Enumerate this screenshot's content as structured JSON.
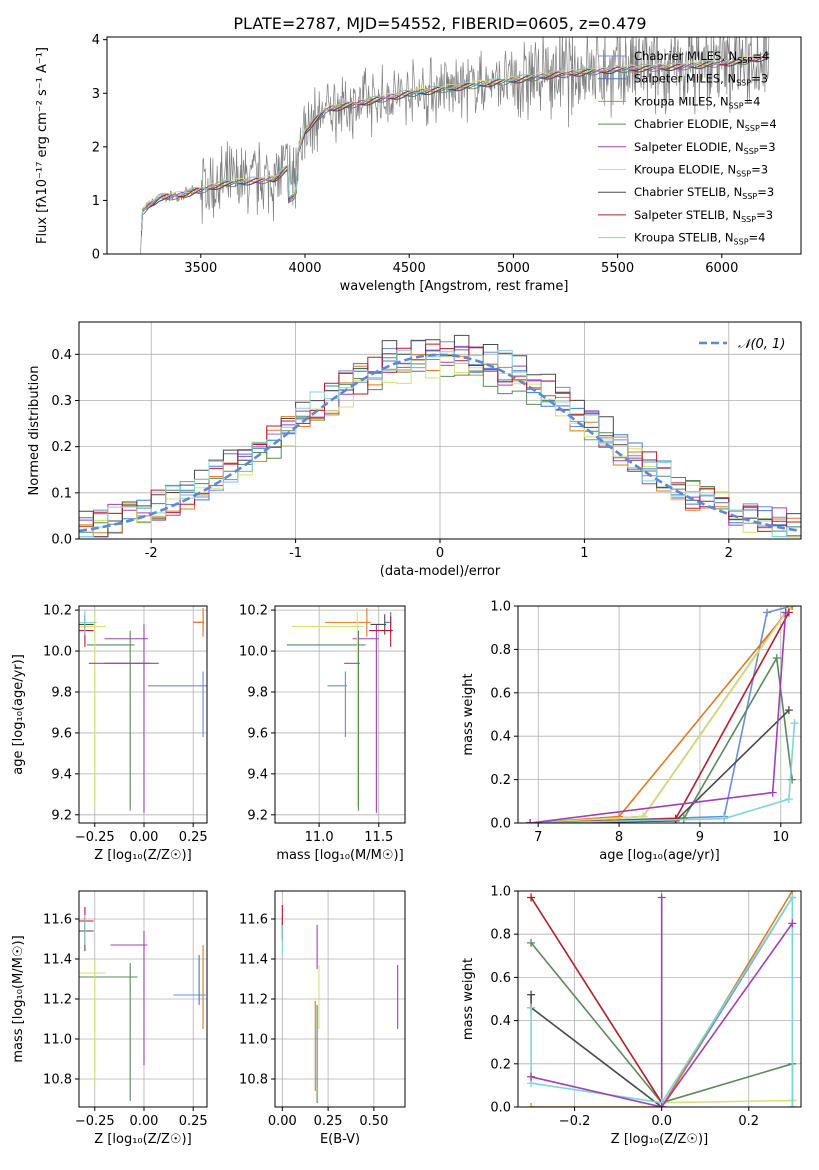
{
  "figure": {
    "title": "PLATE=2787, MJD=54552, FIBERID=0605, z=0.479"
  },
  "palette": {
    "chabrier_miles": "#6a8fd8",
    "salpeter_miles": "#3a7fcf",
    "kroupa_miles": "#e07b1f",
    "chabrier_elodie": "#5a8a5a",
    "salpeter_elodie": "#a040b8",
    "kroupa_elodie": "#d8e070",
    "chabrier_stelib": "#4a4a4a",
    "salpeter_stelib": "#b81c2c",
    "kroupa_stelib": "#80d4d8",
    "observed": "#808080",
    "normal": "#5b88d8",
    "grid": "#b0b0b0"
  },
  "chart_data": [
    {
      "type": "line",
      "panel": "spectrum",
      "xlabel": "wavelength [Angstrom, rest frame]",
      "ylabel": "Flux [f$_\\lambda$10$^{-17}$ erg cm$^{-2}$ s$^{-1}$ A$^{-1}$]",
      "ylabel_display": "Flux [fλ10⁻¹⁷ erg cm⁻² s⁻¹ A⁻¹]",
      "xlim": [
        3050,
        6380
      ],
      "ylim": [
        0,
        4.05
      ],
      "xticks": [
        3500,
        4000,
        4500,
        5000,
        5500,
        6000
      ],
      "yticks": [
        0,
        1,
        2,
        3,
        4
      ],
      "grid": false,
      "legend_position": "top-right",
      "legend": [
        {
          "key": "chabrier_miles",
          "label": "Chabrier MILES, N",
          "sub": "SSP",
          "suffix": "=4"
        },
        {
          "key": "salpeter_miles",
          "label": "Salpeter MILES, N",
          "sub": "SSP",
          "suffix": "=3"
        },
        {
          "key": "kroupa_miles",
          "label": "Kroupa MILES, N",
          "sub": "SSP",
          "suffix": "=4"
        },
        {
          "key": "chabrier_elodie",
          "label": "Chabrier ELODIE, N",
          "sub": "SSP",
          "suffix": "=4"
        },
        {
          "key": "salpeter_elodie",
          "label": "Salpeter ELODIE, N",
          "sub": "SSP",
          "suffix": "=3"
        },
        {
          "key": "kroupa_elodie",
          "label": "Kroupa ELODIE, N",
          "sub": "SSP",
          "suffix": "=3"
        },
        {
          "key": "chabrier_stelib",
          "label": "Chabrier STELIB, N",
          "sub": "SSP",
          "suffix": "=3"
        },
        {
          "key": "salpeter_stelib",
          "label": "Salpeter STELIB, N",
          "sub": "SSP",
          "suffix": "=3"
        },
        {
          "key": "kroupa_stelib",
          "label": "Kroupa STELIB, N",
          "sub": "SSP",
          "suffix": "=4"
        }
      ],
      "continuum_points": [
        [
          3210,
          0.0
        ],
        [
          3220,
          0.8
        ],
        [
          3300,
          1.05
        ],
        [
          3400,
          1.1
        ],
        [
          3500,
          1.2
        ],
        [
          3600,
          1.3
        ],
        [
          3700,
          1.35
        ],
        [
          3850,
          1.4
        ],
        [
          3950,
          1.7
        ],
        [
          4000,
          2.3
        ],
        [
          4100,
          2.7
        ],
        [
          4300,
          2.85
        ],
        [
          4500,
          3.0
        ],
        [
          4800,
          3.15
        ],
        [
          5000,
          3.25
        ],
        [
          5200,
          3.35
        ],
        [
          5500,
          3.45
        ],
        [
          5800,
          3.5
        ],
        [
          6100,
          3.6
        ],
        [
          6230,
          3.7
        ]
      ]
    },
    {
      "type": "line",
      "panel": "residual histogram",
      "xlabel": "(data-model)/error",
      "ylabel": "Normed distribution",
      "xlim": [
        -2.5,
        2.5
      ],
      "ylim": [
        0,
        0.47
      ],
      "xticks": [
        -2,
        -1,
        0,
        1,
        2
      ],
      "yticks": [
        0.0,
        0.1,
        0.2,
        0.3,
        0.4
      ],
      "grid": true,
      "legend_position": "top-right",
      "legend_label": "𝒩(0, 1)",
      "bin_width": 0.1,
      "series": [
        {
          "key": "chabrier_miles",
          "peak": 0.41
        },
        {
          "key": "salpeter_miles",
          "peak": 0.4
        },
        {
          "key": "kroupa_miles",
          "peak": 0.39
        },
        {
          "key": "chabrier_elodie",
          "peak": 0.38
        },
        {
          "key": "salpeter_elodie",
          "peak": 0.4
        },
        {
          "key": "kroupa_elodie",
          "peak": 0.37
        },
        {
          "key": "chabrier_stelib",
          "peak": 0.42
        },
        {
          "key": "salpeter_stelib",
          "peak": 0.4
        },
        {
          "key": "kroupa_stelib",
          "peak": 0.41
        }
      ]
    },
    {
      "type": "scatter",
      "panel": "age vs metallicity",
      "xlabel": "Z [log₁₀(Z/Z☉)]",
      "ylabel": "age  [log₁₀(age/yr)]",
      "xlim": [
        -0.33,
        0.32
      ],
      "ylim": [
        9.16,
        10.22
      ],
      "xticks": [
        -0.25,
        0.0,
        0.25
      ],
      "xtick_labels": [
        "−0.25",
        "0.00",
        "0.25"
      ],
      "yticks": [
        9.2,
        9.4,
        9.6,
        9.8,
        10.0,
        10.2
      ],
      "grid": true,
      "points": [
        {
          "key": "chabrier_miles",
          "x": 0.3,
          "xerr": 0.28,
          "y": 9.83,
          "yerr": 0.25
        },
        {
          "key": "salpeter_miles",
          "x": 0.3,
          "xerr": 0.05,
          "y": 10.14,
          "yerr": 0.05
        },
        {
          "key": "kroupa_miles",
          "x": 0.3,
          "xerr": 0.05,
          "y": 10.14,
          "yerr": 0.07
        },
        {
          "key": "chabrier_elodie",
          "x": -0.07,
          "xerr": 0.22,
          "y": 10.03,
          "yerr": 0.81
        },
        {
          "key": "salpeter_elodie",
          "x": 0.0,
          "xerr": 0.2,
          "y": 10.06,
          "yerr": 0.85
        },
        {
          "key": "kroupa_elodie",
          "x": -0.25,
          "xerr": 0.55,
          "y": 10.12,
          "yerr": 0.88
        },
        {
          "key": "chabrier_stelib",
          "x": -0.3,
          "xerr": 0.45,
          "y": 10.13,
          "yerr": 0.05
        },
        {
          "key": "salpeter_stelib",
          "x": -0.3,
          "xerr": 0.44,
          "y": 10.1,
          "yerr": 0.08
        },
        {
          "key": "kroupa_stelib",
          "x": -0.3,
          "xerr": 0.6,
          "y": 10.14,
          "yerr": 0.06
        },
        {
          "key": "kroupa_stelib_b",
          "color_key": "salpeter_elodie",
          "x": 0.0,
          "xerr": 0.28,
          "y": 9.94,
          "yerr": 0.0
        },
        {
          "key": "pink_component",
          "color_key": "salpeter_elodie",
          "x": 0.05,
          "xerr": 0.25,
          "y": 9.94,
          "yerr": 0.0
        }
      ]
    },
    {
      "type": "scatter",
      "panel": "age vs mass",
      "xlabel": "mass [log₁₀(M/M☉)]",
      "xlim": [
        10.63,
        11.72
      ],
      "ylim": [
        9.16,
        10.22
      ],
      "xticks": [
        11.0,
        11.5
      ],
      "xtick_labels": [
        "11.0",
        "11.5"
      ],
      "yticks": [
        9.2,
        9.4,
        9.6,
        9.8,
        10.0,
        10.2
      ],
      "grid": true,
      "points": [
        {
          "key": "chabrier_miles",
          "x": 11.22,
          "xerr": 0.15,
          "y": 9.83,
          "yerr": 0.25
        },
        {
          "key": "salpeter_miles",
          "x": 11.6,
          "xerr": 0.05,
          "y": 10.14,
          "yerr": 0.05
        },
        {
          "key": "kroupa_miles",
          "x": 11.4,
          "xerr": 0.35,
          "y": 10.14,
          "yerr": 0.07
        },
        {
          "key": "chabrier_elodie",
          "x": 11.33,
          "xerr": 0.6,
          "y": 10.03,
          "yerr": 0.81
        },
        {
          "key": "salpeter_elodie",
          "x": 11.48,
          "xerr": 0.2,
          "y": 10.06,
          "yerr": 0.85
        },
        {
          "key": "kroupa_elodie",
          "x": 11.32,
          "xerr": 0.55,
          "y": 10.12,
          "yerr": 0.88
        },
        {
          "key": "chabrier_stelib",
          "x": 11.55,
          "xerr": 0.12,
          "y": 10.13,
          "yerr": 0.05
        },
        {
          "key": "salpeter_stelib",
          "x": 11.6,
          "xerr": 0.18,
          "y": 10.1,
          "yerr": 0.08
        },
        {
          "key": "pink_component",
          "color_key": "salpeter_elodie",
          "x": 11.33,
          "xerr": 0.12,
          "y": 9.94,
          "yerr": 0.0
        }
      ]
    },
    {
      "type": "line",
      "panel": "cumulative mass weight vs age",
      "xlabel": "age  [log₁₀(age/yr)]",
      "ylabel": "mass weight",
      "xlim": [
        6.75,
        10.25
      ],
      "ylim": [
        0,
        1.0
      ],
      "xticks": [
        7,
        8,
        9,
        10
      ],
      "yticks": [
        0.0,
        0.2,
        0.4,
        0.6,
        0.8,
        1.0
      ],
      "grid": true,
      "series": [
        {
          "key": "chabrier_miles",
          "x": [
            6.9,
            9.3,
            9.83,
            10.14
          ],
          "y": [
            0.0,
            0.03,
            0.97,
            1.0
          ]
        },
        {
          "key": "kroupa_miles",
          "x": [
            6.9,
            8.0,
            10.14
          ],
          "y": [
            0.0,
            0.03,
            1.0
          ]
        },
        {
          "key": "chabrier_elodie",
          "x": [
            6.9,
            8.8,
            9.95,
            10.14
          ],
          "y": [
            0.0,
            0.02,
            0.76,
            0.2
          ]
        },
        {
          "key": "salpeter_elodie",
          "x": [
            6.9,
            8.3,
            10.06
          ],
          "y": [
            0.0,
            0.03,
            0.97
          ]
        },
        {
          "key": "kroupa_elodie",
          "x": [
            6.9,
            8.3,
            10.12
          ],
          "y": [
            0.0,
            0.03,
            1.0
          ]
        },
        {
          "key": "chabrier_stelib",
          "x": [
            6.9,
            8.7,
            10.1
          ],
          "y": [
            0.0,
            0.01,
            0.52
          ]
        },
        {
          "key": "salpeter_stelib",
          "x": [
            6.9,
            8.7,
            10.1
          ],
          "y": [
            0.0,
            0.02,
            0.97
          ]
        },
        {
          "key": "kroupa_stelib",
          "x": [
            6.9,
            9.3,
            10.1,
            10.17
          ],
          "y": [
            0.0,
            0.02,
            0.11,
            0.46
          ]
        },
        {
          "key": "pink_component",
          "color_key": "salpeter_elodie",
          "x": [
            6.9,
            9.9,
            10.06
          ],
          "y": [
            0.0,
            0.14,
            0.97
          ]
        }
      ]
    },
    {
      "type": "scatter",
      "panel": "mass vs metallicity",
      "xlabel": "Z [log₁₀(Z/Z☉)]",
      "ylabel": "mass [log₁₀(M/M☉)]",
      "xlim": [
        -0.33,
        0.32
      ],
      "ylim": [
        10.66,
        11.74
      ],
      "xticks": [
        -0.25,
        0.0,
        0.25
      ],
      "xtick_labels": [
        "−0.25",
        "0.00",
        "0.25"
      ],
      "yticks": [
        10.8,
        11.0,
        11.2,
        11.4,
        11.6
      ],
      "grid": true,
      "points": [
        {
          "key": "chabrier_miles",
          "x": 0.3,
          "xerr": 0.15,
          "y": 11.22,
          "yerr": 0.0
        },
        {
          "key": "kroupa_miles",
          "x": 0.3,
          "xerr": 0.0,
          "y": 11.4,
          "yerr": 0.35
        },
        {
          "key": "chabrier_elodie",
          "x": -0.07,
          "xerr": 0.37,
          "y": 11.31,
          "yerr": 0.62
        },
        {
          "key": "salpeter_elodie",
          "x": 0.0,
          "xerr": 0.17,
          "y": 11.47,
          "yerr": 0.6
        },
        {
          "key": "kroupa_elodie",
          "x": -0.25,
          "xerr": 0.55,
          "y": 11.33,
          "yerr": 0.55
        },
        {
          "key": "chabrier_stelib",
          "x": -0.3,
          "xerr": 0.44,
          "y": 11.54,
          "yerr": 0.1
        },
        {
          "key": "salpeter_stelib",
          "x": -0.3,
          "xerr": 0.44,
          "y": 11.59,
          "yerr": 0.12
        },
        {
          "key": "kroupa_stelib",
          "x": -0.3,
          "xerr": 0.0,
          "y": 11.55,
          "yerr": 0.08
        },
        {
          "key": "salpeter_miles",
          "x": 0.28,
          "xerr": 0.0,
          "y": 11.35,
          "yerr": 0.18
        }
      ]
    },
    {
      "type": "scatter",
      "panel": "mass vs extinction",
      "xlabel": "E(B-V)",
      "xlim": [
        -0.04,
        0.67
      ],
      "ylim": [
        10.66,
        11.74
      ],
      "xticks": [
        0.0,
        0.25,
        0.5
      ],
      "xtick_labels": [
        "0.00",
        "0.25",
        "0.50"
      ],
      "yticks": [
        10.8,
        11.0,
        11.2,
        11.4,
        11.6
      ],
      "grid": true,
      "points": [
        {
          "key": "chabrier_miles",
          "x": 0.0,
          "y": 11.55,
          "yerr": 0.06
        },
        {
          "key": "kroupa_miles",
          "x": 0.18,
          "y": 11.12,
          "yerr": 0.38
        },
        {
          "key": "chabrier_elodie",
          "x": 0.19,
          "y": 11.1,
          "yerr": 0.42
        },
        {
          "key": "salpeter_elodie",
          "x": 0.19,
          "y": 11.5,
          "yerr": 0.15
        },
        {
          "key": "kroupa_elodie",
          "x": 0.2,
          "y": 11.3,
          "yerr": 0.25
        },
        {
          "key": "salpeter_stelib",
          "x": 0.0,
          "y": 11.6,
          "yerr": 0.1
        },
        {
          "key": "kroupa_stelib",
          "x": 0.0,
          "y": 11.5,
          "yerr": 0.08
        },
        {
          "key": "pink_component",
          "color_key": "salpeter_elodie",
          "x": 0.63,
          "y": 11.3,
          "yerr": 0.25
        }
      ]
    },
    {
      "type": "line",
      "panel": "cumulative mass weight vs metallicity",
      "xlabel": "Z [log₁₀(Z/Z☉)]",
      "ylabel": "mass weight",
      "xlim": [
        -0.33,
        0.32
      ],
      "ylim": [
        0,
        1.0
      ],
      "xticks": [
        -0.2,
        0.0,
        0.2
      ],
      "xtick_labels": [
        "−0.2",
        "0.0",
        "0.2"
      ],
      "yticks": [
        0.0,
        0.2,
        0.4,
        0.6,
        0.8,
        1.0
      ],
      "grid": true,
      "series": [
        {
          "key": "chabrier_miles",
          "x": [
            0.0,
            0.3,
            0.3
          ],
          "y": [
            0.0,
            0.97,
            0.0
          ]
        },
        {
          "key": "kroupa_miles",
          "x": [
            -0.3,
            0.0,
            0.3
          ],
          "y": [
            0.0,
            0.0,
            1.0
          ]
        },
        {
          "key": "chabrier_elodie",
          "x": [
            -0.3,
            0.0,
            0.3,
            0.3
          ],
          "y": [
            0.76,
            0.02,
            0.2,
            0.03
          ]
        },
        {
          "key": "salpeter_elodie",
          "x": [
            0.0,
            0.0,
            0.0
          ],
          "y": [
            0.0,
            0.97,
            0.0
          ]
        },
        {
          "key": "kroupa_elodie",
          "x": [
            -0.3,
            0.0,
            0.3
          ],
          "y": [
            0.97,
            0.02,
            0.03
          ]
        },
        {
          "key": "chabrier_stelib",
          "x": [
            -0.3,
            -0.3,
            0.0
          ],
          "y": [
            0.52,
            0.46,
            0.0
          ]
        },
        {
          "key": "salpeter_stelib",
          "x": [
            -0.3,
            0.0
          ],
          "y": [
            0.97,
            0.02
          ]
        },
        {
          "key": "kroupa_stelib",
          "x": [
            -0.3,
            -0.3,
            0.0,
            0.3,
            0.3
          ],
          "y": [
            0.46,
            0.11,
            0.02,
            0.97,
            0.0
          ]
        },
        {
          "key": "pink_component",
          "color_key": "salpeter_elodie",
          "x": [
            -0.3,
            0.0,
            0.3
          ],
          "y": [
            0.14,
            0.0,
            0.85
          ]
        }
      ]
    }
  ]
}
